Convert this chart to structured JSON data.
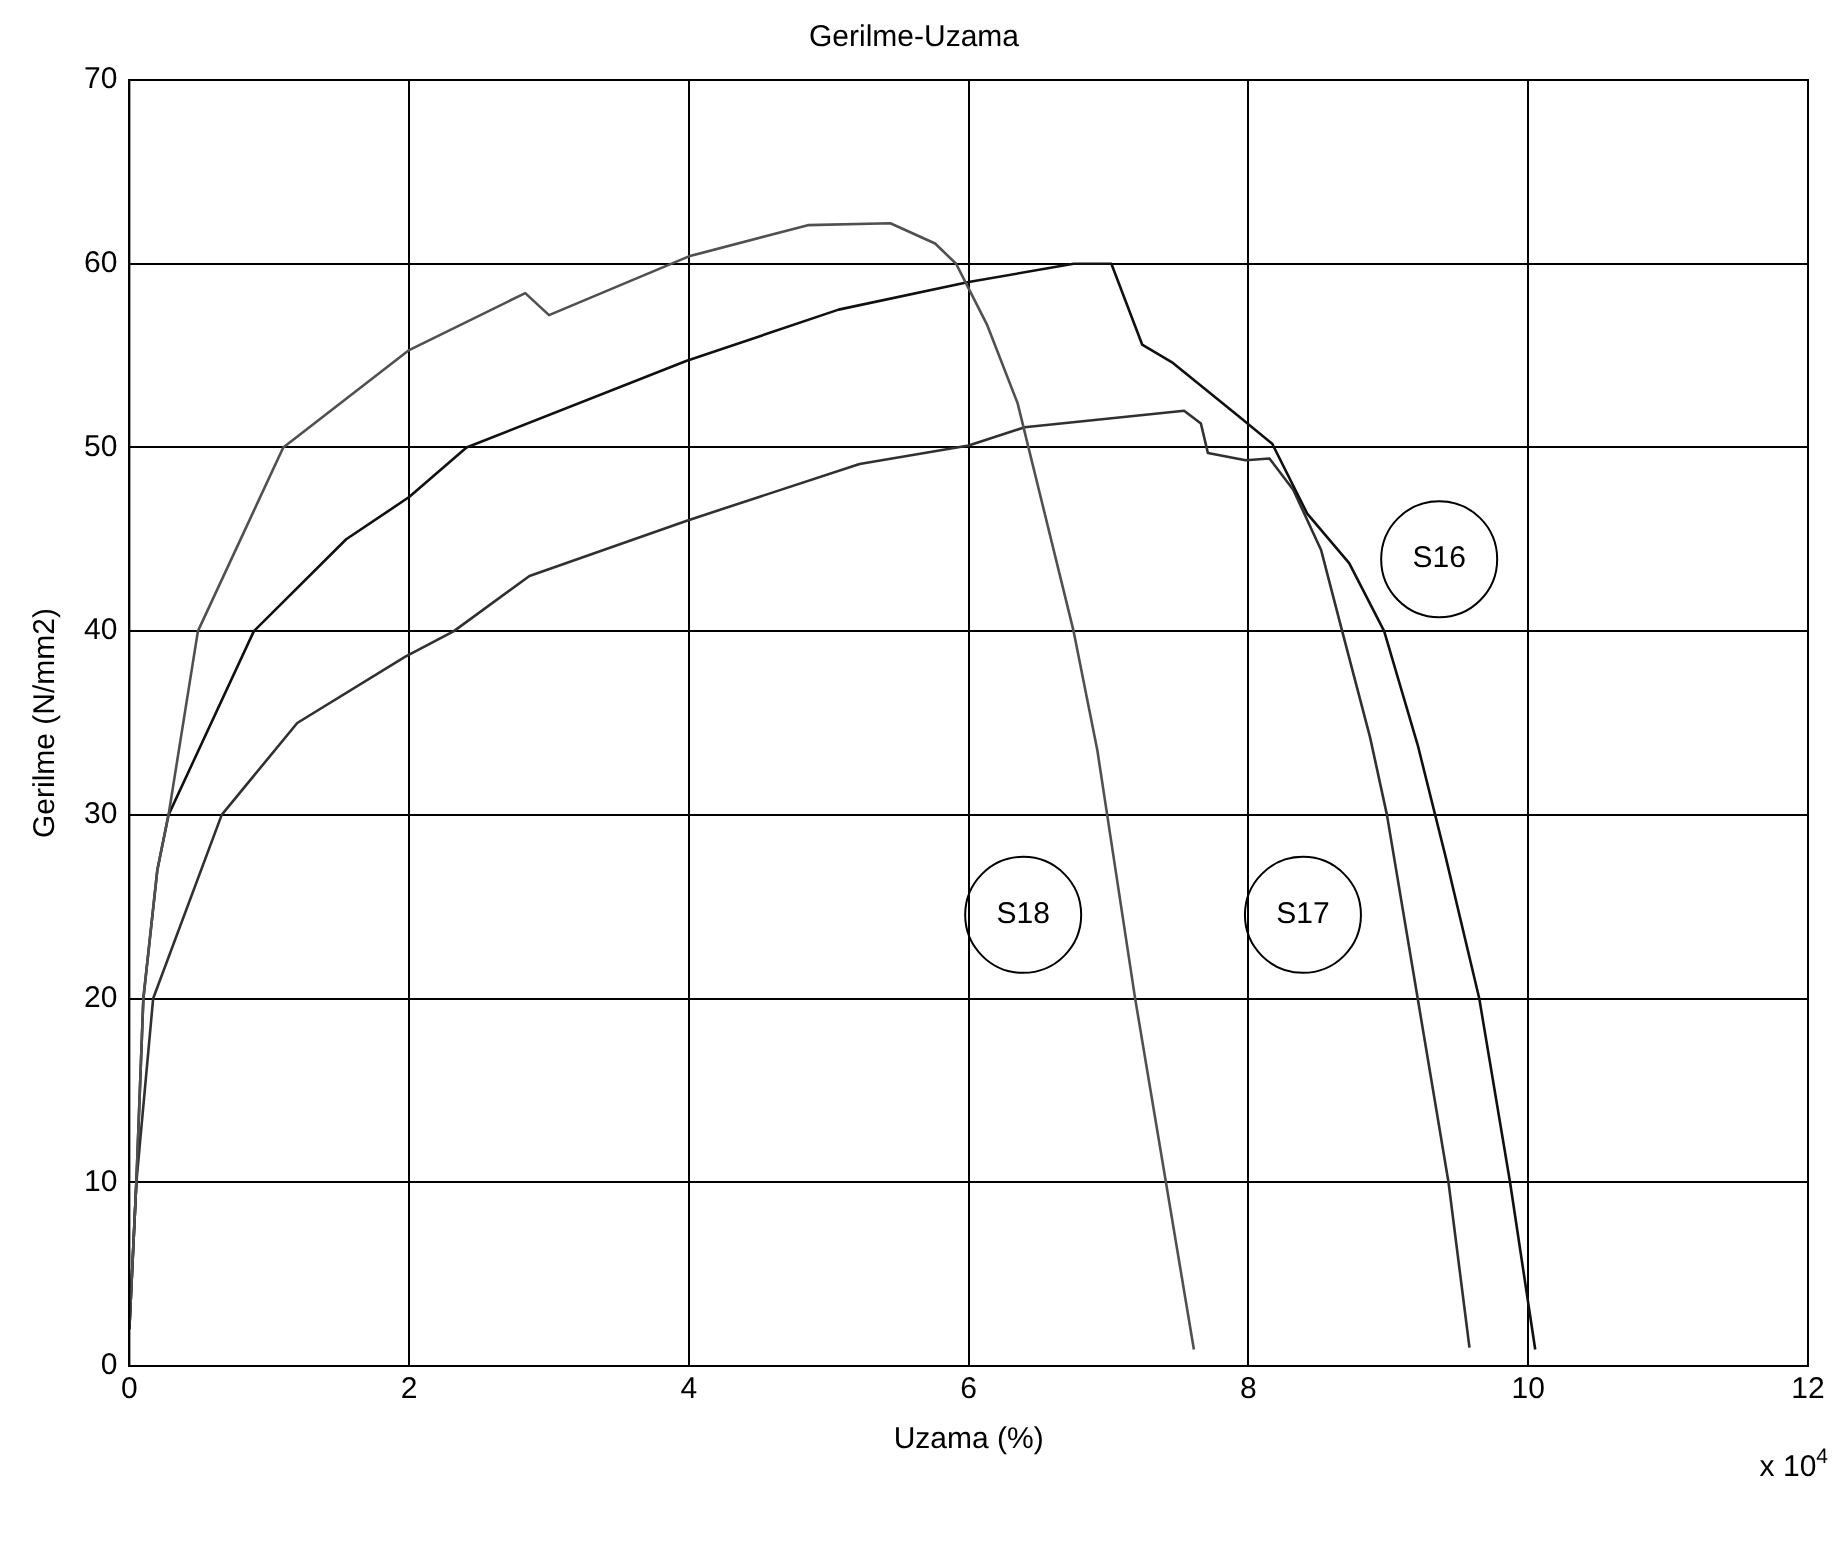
{
  "chart_data": {
    "type": "line",
    "title": "Gerilme-Uzama",
    "xlabel": "Uzama (%)",
    "ylabel": "Gerilme (N/mm2)",
    "annotations": [
      "x 10$^{4}$"
    ],
    "xlim": [
      0,
      12
    ],
    "xticks": [
      0,
      2,
      4,
      6,
      8,
      10,
      12
    ],
    "ylim": [
      0,
      70
    ],
    "yticks": [
      0,
      10,
      20,
      30,
      40,
      50,
      60,
      70
    ],
    "grid": true,
    "legend": false,
    "marker": "none",
    "line_style": "solid",
    "series": [
      {
        "name": "S18",
        "color": "#505050",
        "x": [
          0,
          0.05,
          0.1,
          0.2,
          0.28,
          0.49,
          1.1,
          2.0,
          2.83,
          3.0,
          4.0,
          4.85,
          5.44,
          5.76,
          5.91,
          6.13,
          6.35,
          6.75,
          6.92,
          6.99,
          7.19,
          7.41,
          7.61
        ],
        "values": [
          2,
          10,
          20,
          27,
          30,
          40,
          50,
          55.3,
          58.4,
          57.2,
          60.4,
          62.1,
          62.2,
          61.1,
          60,
          56.7,
          52.4,
          40,
          33.5,
          30,
          20,
          10,
          0.9
        ]
      },
      {
        "name": "S16",
        "color": "#101010",
        "x": [
          0,
          0.05,
          0.1,
          0.2,
          0.28,
          0.89,
          1.55,
          2.0,
          2.41,
          3.98,
          5.07,
          6.0,
          6.75,
          7.02,
          7.24,
          7.46,
          7.93,
          8.17,
          8.42,
          8.72,
          8.97,
          9.21,
          9.41,
          9.65,
          9.87,
          10.05
        ],
        "values": [
          2,
          10,
          20,
          27,
          30,
          40,
          45,
          47.3,
          50,
          54.7,
          57.5,
          59.0,
          60,
          60,
          55.6,
          54.6,
          51.7,
          50.2,
          46.4,
          43.7,
          40,
          33.8,
          27.7,
          20,
          10,
          0.9
        ]
      },
      {
        "name": "S17",
        "color": "#303030",
        "x": [
          0,
          0.05,
          0.17,
          0.66,
          1.2,
          1.97,
          2.32,
          2.86,
          3.98,
          5.22,
          6.0,
          6.4,
          7.54,
          7.66,
          7.71,
          7.98,
          8.15,
          8.32,
          8.52,
          8.67,
          8.87,
          8.99,
          9.21,
          9.43,
          9.58
        ],
        "values": [
          2,
          10,
          20,
          30,
          35,
          38.6,
          40,
          43,
          46,
          49.1,
          50.1,
          51.1,
          52.0,
          51.3,
          49.7,
          49.3,
          49.4,
          47.7,
          44.4,
          40,
          34.2,
          30,
          20,
          10,
          1
        ]
      }
    ]
  }
}
